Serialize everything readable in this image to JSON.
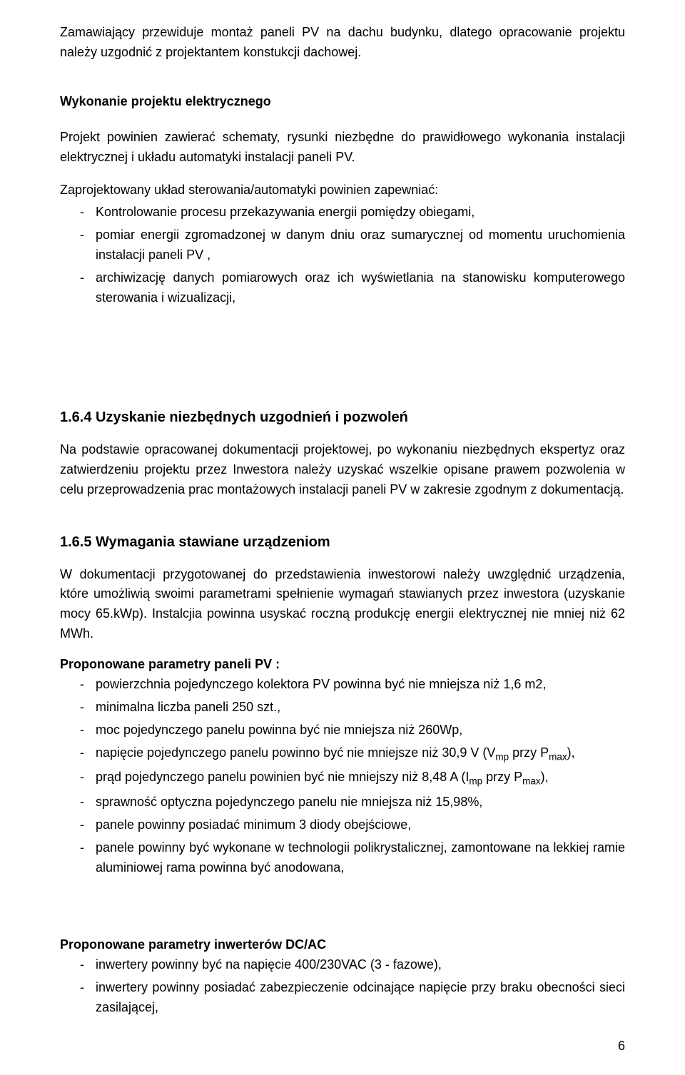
{
  "intro": {
    "text": "Zamawiający przewiduje montaż paneli PV na dachu budynku, dlatego opracowanie projektu należy uzgodnić z projektantem konstukcji dachowej."
  },
  "electrical_project": {
    "heading": "Wykonanie projektu elektrycznego",
    "para1": "Projekt powinien zawierać schematy, rysunki niezbędne do prawidłowego wykonania instalacji elektrycznej i układu automatyki instalacji paneli PV.",
    "para2": "Zaprojektowany układ sterowania/automatyki powinien zapewniać:",
    "bullets": [
      "Kontrolowanie  procesu przekazywania energii pomiędzy obiegami,",
      "pomiar energii zgromadzonej w danym dniu oraz sumarycznej od momentu uruchomienia instalacji paneli PV ,",
      "archiwizację danych pomiarowych oraz ich wyświetlania na stanowisku komputerowego sterowania i wizualizacji,"
    ]
  },
  "section_164": {
    "heading": "1.6.4  Uzyskanie niezbędnych uzgodnień i pozwoleń",
    "para": "Na podstawie opracowanej dokumentacji projektowej, po wykonaniu niezbędnych ekspertyz oraz zatwierdzeniu projektu przez Inwestora należy uzyskać wszelkie opisane prawem pozwolenia w celu przeprowadzenia prac montażowych instalacji paneli PV  w zakresie zgodnym z dokumentacją."
  },
  "section_165": {
    "heading": "1.6.5  Wymagania stawiane urządzeniom",
    "para1": "W dokumentacji przygotowanej do przedstawienia inwestorowi należy uwzględnić urządzenia, które umożliwią swoimi parametrami spełnienie wymagań stawianych przez inwestora (uzyskanie mocy   65.kWp). Instalcjia powinna usyskać roczną produkcję energii elektrycznej nie mniej niż 62 MWh.",
    "pv_params_heading": "Proponowane parametry paneli PV :",
    "pv_params": [
      "powierzchnia pojedynczego kolektora PV powinna być nie mniejsza niż 1,6 m2,",
      "minimalna liczba paneli 250 szt.,",
      "moc pojedynczego panelu powinna być nie mniejsza niż 260Wp,",
      "napięcie pojedynczego panelu powinno być nie mniejsze niż 30,9 V (V<sub>mp</sub> przy P<sub>max</sub>),",
      "prąd pojedynczego panelu powinien być nie mniejszy niż  8,48 A (I<sub>mp</sub> przy P<sub>max</sub>),",
      "sprawność optyczna pojedynczego panelu nie mniejsza niż 15,98%,",
      "panele powinny posiadać minimum 3 diody obejściowe,",
      "panele powinny być wykonane w technologii polikrystalicznej, zamontowane na lekkiej ramie aluminiowej rama powinna być anodowana,"
    ],
    "inverter_heading": "Proponowane parametry inwerterów DC/AC",
    "inverter_params": [
      "inwertery powinny być na napięcie 400/230VAC (3 - fazowe),",
      "inwertery powinny posiadać zabezpieczenie odcinające napięcie przy braku obecności sieci zasilającej,"
    ]
  },
  "page_number": "6"
}
